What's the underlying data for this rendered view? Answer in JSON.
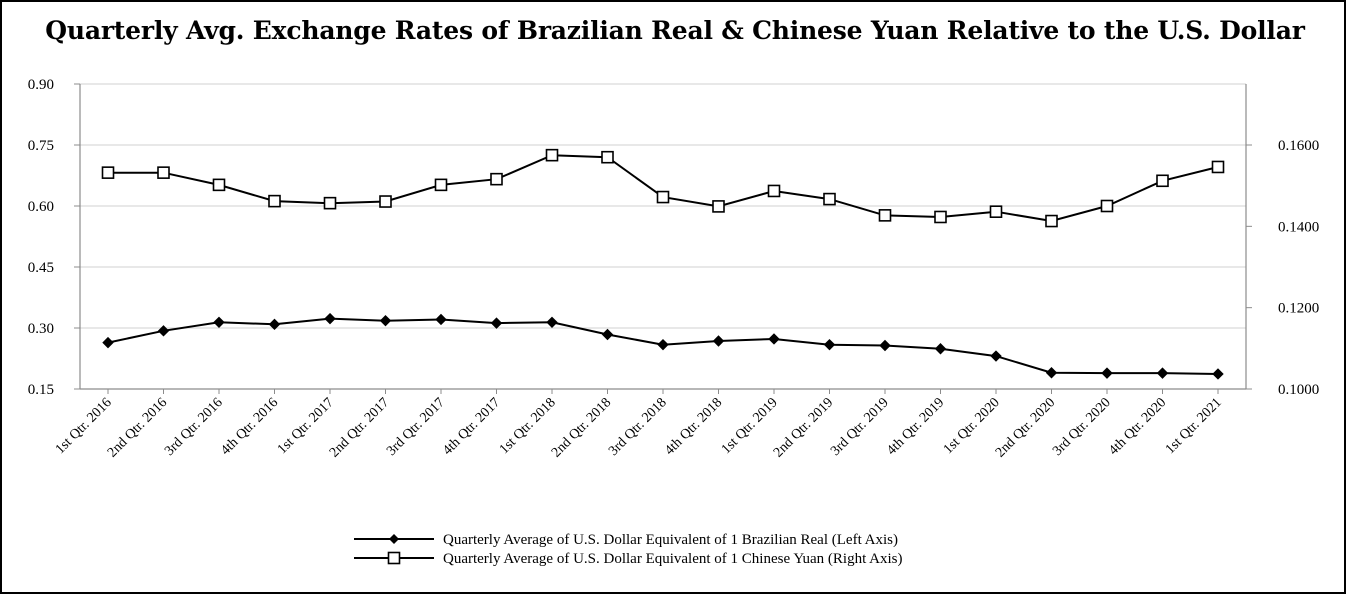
{
  "chart_data": {
    "type": "line",
    "title": "Quarterly Avg. Exchange Rates of Brazilian Real & Chinese Yuan Relative to the U.S. Dollar",
    "categories": [
      "1st Qtr. 2016",
      "2nd Qtr. 2016",
      "3rd Qtr. 2016",
      "4th Qtr. 2016",
      "1st Qtr. 2017",
      "2nd Qtr. 2017",
      "3rd Qtr. 2017",
      "4th Qtr. 2017",
      "1st Qtr. 2018",
      "2nd Qtr. 2018",
      "3rd Qtr. 2018",
      "4th Qtr. 2018",
      "1st Qtr. 2019",
      "2nd Qtr. 2019",
      "3rd Qtr. 2019",
      "4th Qtr. 2019",
      "1st Qtr. 2020",
      "2nd Qtr. 2020",
      "3rd Qtr. 2020",
      "4th Qtr. 2020",
      "1st Qtr. 2021"
    ],
    "left_axis": {
      "min": 0.15,
      "max": 0.9,
      "ticks": [
        "0.15",
        "0.30",
        "0.45",
        "0.60",
        "0.75",
        "0.90"
      ]
    },
    "right_axis": {
      "min": 0.1,
      "max": 0.175,
      "ticks": [
        "0.1000",
        "0.1200",
        "0.1400",
        "0.1600"
      ]
    },
    "grid": true,
    "legend_position": "bottom",
    "series": [
      {
        "name": "Quarterly Average of U.S. Dollar Equivalent of 1 Brazilian Real (Left Axis)",
        "axis": "left",
        "marker": "filled-diamond",
        "color": "#000000",
        "values": [
          0.264,
          0.293,
          0.314,
          0.309,
          0.323,
          0.318,
          0.321,
          0.312,
          0.314,
          0.284,
          0.259,
          0.268,
          0.273,
          0.259,
          0.257,
          0.249,
          0.231,
          0.19,
          0.189,
          0.189,
          0.187
        ]
      },
      {
        "name": "Quarterly Average of U.S. Dollar Equivalent of 1 Chinese Yuan (Right Axis)",
        "axis": "right",
        "marker": "open-square",
        "color": "#000000",
        "values": [
          0.1532,
          0.1532,
          0.1502,
          0.1462,
          0.1457,
          0.1461,
          0.1502,
          0.1516,
          0.1575,
          0.157,
          0.1472,
          0.1449,
          0.1487,
          0.1467,
          0.1427,
          0.1423,
          0.1436,
          0.1413,
          0.145,
          0.1512,
          0.1546
        ]
      }
    ]
  }
}
